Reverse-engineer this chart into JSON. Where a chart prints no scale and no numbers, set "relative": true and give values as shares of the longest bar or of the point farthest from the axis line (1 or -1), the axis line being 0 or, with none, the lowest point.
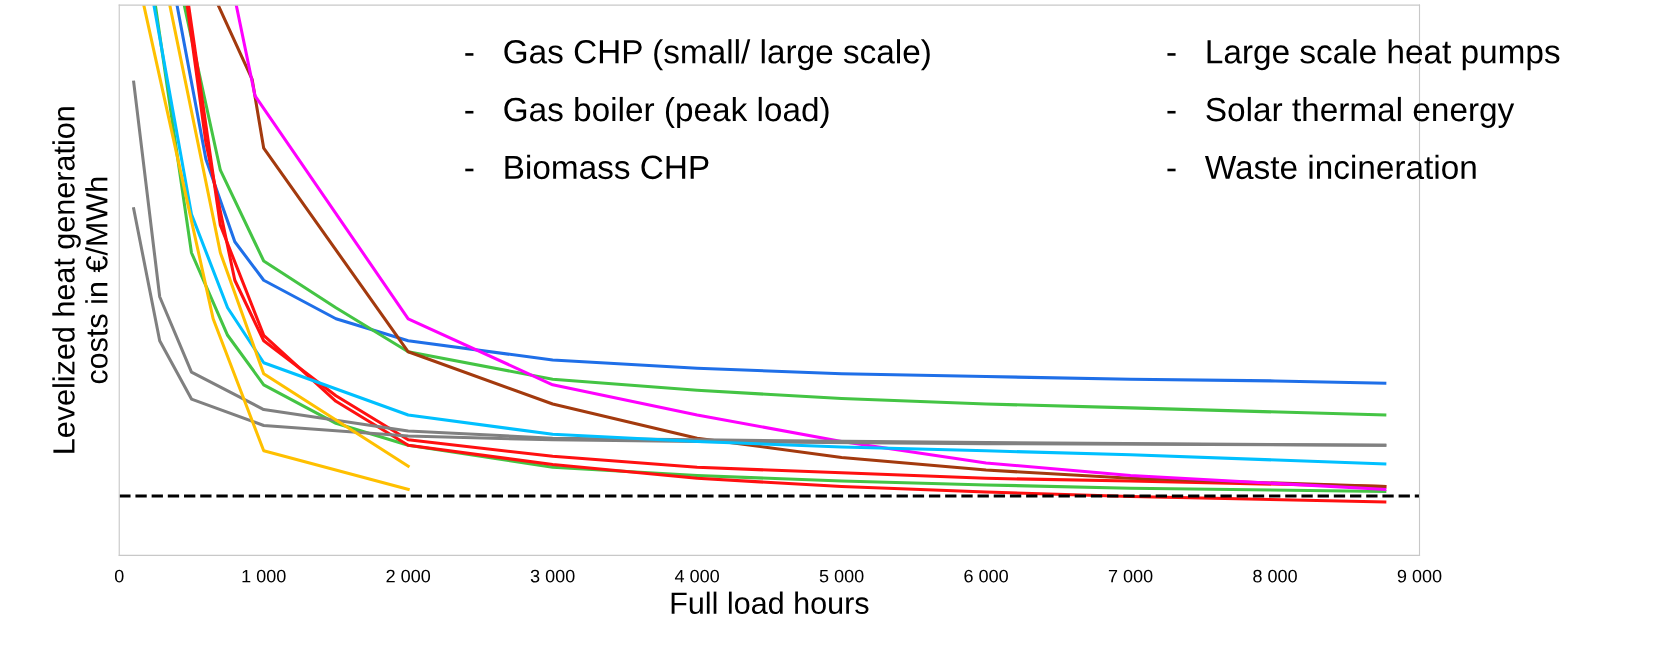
{
  "chart_data": {
    "type": "line",
    "relative": true,
    "xlabel": "Full load hours",
    "ylabel": "Levelized heat generation\ncosts in €/MWh",
    "xlim": [
      0,
      9000
    ],
    "xticks": [
      0,
      {
        "value": 1000,
        "label": "1 000"
      },
      {
        "value": 2000,
        "label": "2 000"
      },
      {
        "value": 3000,
        "label": "3 000"
      },
      {
        "value": 4000,
        "label": "4 000"
      },
      {
        "value": 5000,
        "label": "5 000"
      },
      {
        "value": 6000,
        "label": "6 000"
      },
      {
        "value": 7000,
        "label": "7 000"
      },
      {
        "value": 8000,
        "label": "8 000"
      },
      {
        "value": 9000,
        "label": "9 000"
      }
    ],
    "marker": "none",
    "line_style": "solid",
    "annotations": [
      "-   Gas CHP (small/ large scale)",
      "-   Gas boiler (peak load)",
      "-   Biomass CHP",
      "-   Large scale heat pumps",
      "-   Solar thermal energy",
      "-   Waste incineration"
    ],
    "ref_lines": [
      {
        "axis": "y",
        "value": 0.108,
        "color": "#000000",
        "line_style": "dashed"
      }
    ],
    "series": [
      {
        "color": "#1f6fe8",
        "x": [
          400,
          600,
          800,
          1000,
          1500,
          2000,
          3000,
          4000,
          5000,
          6000,
          7000,
          8000,
          8760
        ],
        "values": [
          1.0,
          0.72,
          0.57,
          0.5,
          0.43,
          0.39,
          0.355,
          0.34,
          0.33,
          0.325,
          0.32,
          0.317,
          0.313
        ]
      },
      {
        "color": "#44c444",
        "x": [
          450,
          700,
          1000,
          1500,
          2000,
          3000,
          4000,
          5000,
          6000,
          7000,
          8760
        ],
        "values": [
          1.0,
          0.7,
          0.535,
          0.45,
          0.37,
          0.32,
          0.3,
          0.285,
          0.275,
          0.268,
          0.255
        ]
      },
      {
        "color": "#44c444",
        "x": [
          250,
          500,
          750,
          1000,
          1500,
          2000,
          3000,
          4000,
          5000,
          6000,
          7000,
          8760
        ],
        "values": [
          1.0,
          0.55,
          0.4,
          0.31,
          0.24,
          0.2,
          0.16,
          0.145,
          0.135,
          0.128,
          0.122,
          0.116
        ]
      },
      {
        "color": "#ff1010",
        "x": [
          470,
          600,
          800,
          1000,
          1500,
          2000,
          3000,
          4000,
          5000,
          6000,
          7000,
          8760
        ],
        "values": [
          1.0,
          0.75,
          0.5,
          0.39,
          0.29,
          0.21,
          0.18,
          0.16,
          0.15,
          0.14,
          0.135,
          0.125
        ]
      },
      {
        "color": "#ff1010",
        "x": [
          480,
          700,
          1000,
          1500,
          2000,
          3000,
          4000,
          5000,
          6000,
          7000,
          8760
        ],
        "values": [
          1.0,
          0.6,
          0.4,
          0.28,
          0.2,
          0.165,
          0.14,
          0.125,
          0.115,
          0.107,
          0.097
        ]
      },
      {
        "color": "#a33a0e",
        "x": [
          685,
          920,
          1000,
          2000,
          3000,
          4000,
          5000,
          6000,
          7000,
          8760
        ],
        "values": [
          1.0,
          0.865,
          0.74,
          0.37,
          0.275,
          0.213,
          0.178,
          0.155,
          0.14,
          0.125
        ]
      },
      {
        "color": "#ff00ff",
        "x": [
          810,
          940,
          2000,
          3000,
          4000,
          5000,
          6000,
          7000,
          8760
        ],
        "values": [
          1.0,
          0.835,
          0.43,
          0.31,
          0.255,
          0.207,
          0.168,
          0.145,
          0.12
        ]
      },
      {
        "color": "#808080",
        "x": [
          100,
          280,
          500,
          1000,
          2000,
          3000,
          4000,
          6000,
          8760
        ],
        "values": [
          0.86,
          0.47,
          0.333,
          0.265,
          0.226,
          0.213,
          0.21,
          0.205,
          0.2
        ]
      },
      {
        "color": "#808080",
        "x": [
          100,
          280,
          500,
          1000,
          2000,
          3000,
          4000,
          6000,
          8760
        ],
        "values": [
          0.63,
          0.39,
          0.284,
          0.236,
          0.217,
          0.21,
          0.207,
          0.203,
          0.2
        ]
      },
      {
        "color": "#00c0ff",
        "x": [
          240,
          500,
          750,
          1000,
          2000,
          3000,
          4000,
          5000,
          6000,
          7000,
          8760
        ],
        "values": [
          1.0,
          0.62,
          0.45,
          0.35,
          0.255,
          0.22,
          0.207,
          0.197,
          0.19,
          0.183,
          0.166
        ]
      },
      {
        "color": "#ffc000",
        "x": [
          170,
          650,
          1000,
          2000
        ],
        "values": [
          1.0,
          0.43,
          0.19,
          0.12
        ]
      },
      {
        "color": "#ffc000",
        "x": [
          350,
          700,
          1000,
          2000
        ],
        "values": [
          1.0,
          0.55,
          0.33,
          0.162
        ]
      }
    ]
  }
}
